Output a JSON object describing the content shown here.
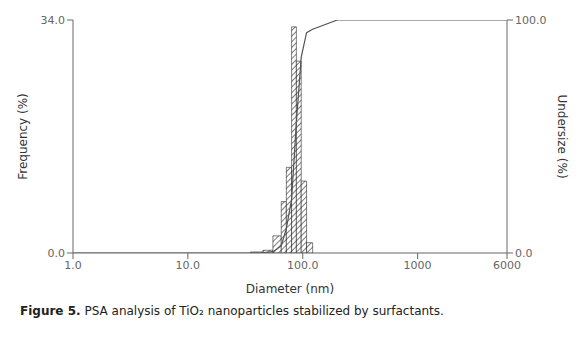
{
  "chart_data": {
    "type": "histogram",
    "xlabel": "Diameter (nm)",
    "ylabel": "Frequency (%)",
    "y2label": "Undersize (%)",
    "annotations": [
      "Figure 5.",
      "PSA analysis of TiO₂ nanoparticles stabilized by surfactants."
    ],
    "log": "x",
    "grid": false,
    "xlim": [
      1.0,
      6000
    ],
    "xticks": [
      {
        "value": 1,
        "label": "1.0"
      },
      {
        "value": 10,
        "label": "10.0"
      },
      {
        "value": 100,
        "label": "100.0"
      },
      1000,
      6000
    ],
    "ylim": [
      0,
      34.0
    ],
    "yticks": [
      {
        "value": 0,
        "label": "0.0"
      },
      {
        "value": 34,
        "label": "34.0"
      }
    ],
    "y2lim": [
      0.0,
      100.0
    ],
    "y2ticks": [
      {
        "value": 0,
        "label": "0.0"
      },
      {
        "value": 100,
        "label": "100.0"
      }
    ],
    "series": [
      {
        "type": "bar",
        "color": "#000000",
        "bins": [
          35,
          45,
          55,
          65,
          72,
          80,
          88,
          97,
          108,
          122
        ],
        "values": [
          0.15,
          0.4,
          2.5,
          7.5,
          12.5,
          33.0,
          28.0,
          10.5,
          1.5
        ]
      },
      {
        "type": "line",
        "axis": "y2",
        "color": "#555555",
        "x": [
          1,
          35,
          45,
          55,
          65,
          72,
          80,
          88,
          97,
          108,
          122,
          200,
          6000
        ],
        "values": [
          0,
          0,
          0.15,
          0.55,
          3.05,
          10.55,
          23.05,
          56.05,
          84.05,
          94.55,
          96.05,
          100,
          100
        ]
      }
    ]
  }
}
